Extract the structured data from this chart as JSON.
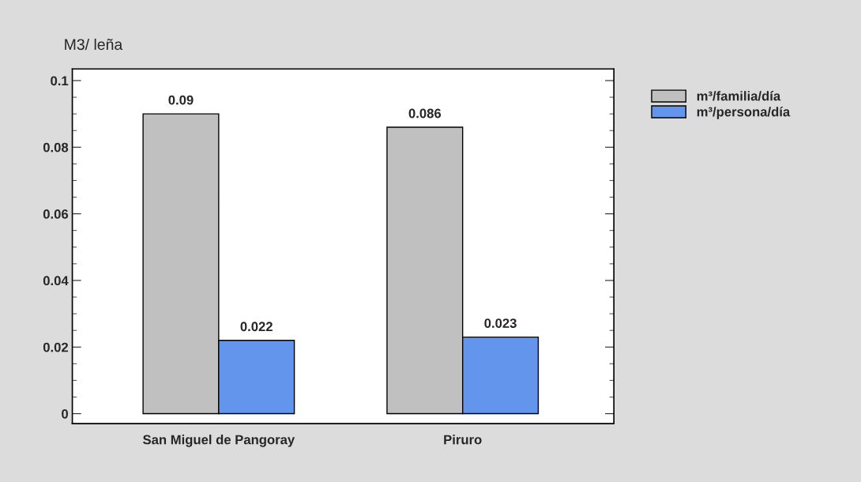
{
  "chart_data": {
    "type": "bar",
    "ylabel": "M3/ leña",
    "categories": [
      "San Miguel de Pangoray",
      "Piruro"
    ],
    "series": [
      {
        "name": "m³/familia/día",
        "color": "#c0c0c0",
        "values": [
          0.09,
          0.086
        ]
      },
      {
        "name": "m³/persona/día",
        "color": "#6495ed",
        "values": [
          0.022,
          0.023
        ]
      }
    ],
    "ylim": [
      -0.003,
      0.1035
    ],
    "yticks": [
      0,
      0.02,
      0.04,
      0.06,
      0.08,
      0.1
    ],
    "data_labels": true,
    "legend": "top right",
    "grid": false
  }
}
